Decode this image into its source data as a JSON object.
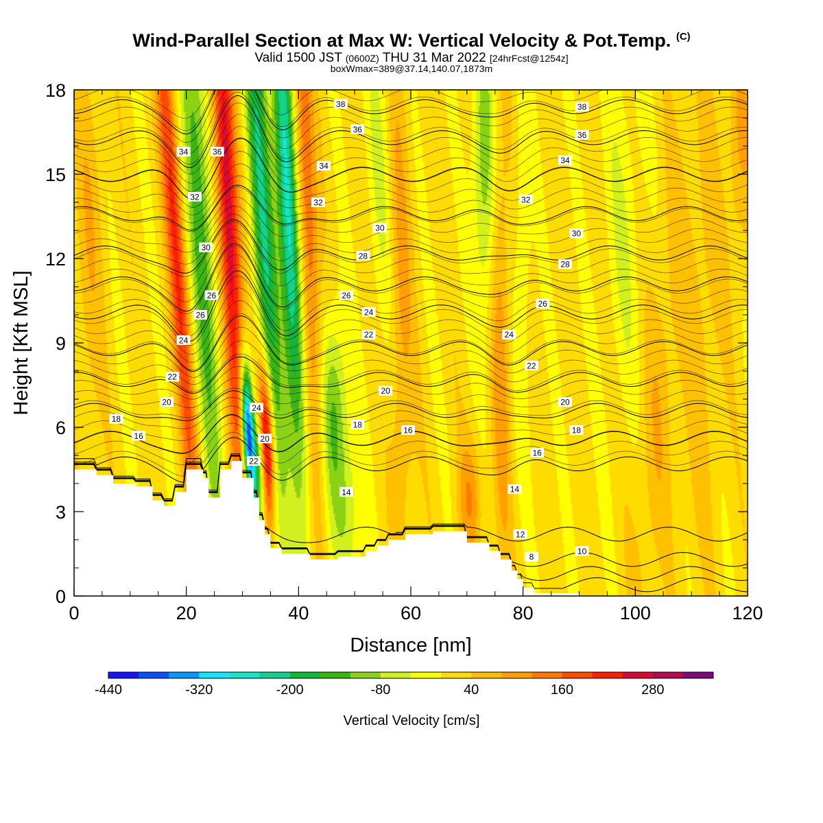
{
  "header": {
    "title": "Wind-Parallel Section at Max W: Vertical Velocity & Pot.Temp.",
    "copyright": "(C)",
    "valid_prefix": "Valid 1500 JST",
    "valid_utc": "(0600Z)",
    "valid_day": "THU 31 Mar 2022",
    "forecast": "[24hrFcst@1254z]",
    "box_info": "boxWmax=389@37.14,140.07,1873m"
  },
  "chart_data": {
    "type": "heatmap",
    "xlabel": "Distance [nm]",
    "ylabel": "Height [Kft MSL]",
    "xlim": [
      0,
      120
    ],
    "ylim": [
      0,
      18
    ],
    "x_ticks": [
      0,
      20,
      40,
      60,
      80,
      100,
      120
    ],
    "y_ticks": [
      0,
      3,
      6,
      9,
      12,
      15,
      18
    ],
    "colorbar": {
      "label": "Vertical Velocity [cm/s]",
      "min": -440,
      "step": 40,
      "tick_labels": [
        "-440",
        "-320",
        "-200",
        "-80",
        "40",
        "160",
        "280"
      ],
      "tick_values": [
        -440,
        -320,
        -200,
        -80,
        40,
        160,
        280
      ],
      "colors": [
        "#1414ff",
        "#0a50ff",
        "#0a96ff",
        "#14e6ff",
        "#14e6c8",
        "#14d28c",
        "#14b43c",
        "#3cb414",
        "#8cd214",
        "#d2f01e",
        "#ffff00",
        "#ffdc00",
        "#ffc000",
        "#ffa000",
        "#ff7800",
        "#ff4a00",
        "#ff1e00",
        "#dc0a32",
        "#b40a50",
        "#7d0a78"
      ]
    },
    "terrain": [
      [
        0,
        4.5
      ],
      [
        4,
        4.5
      ],
      [
        4,
        4.3
      ],
      [
        7,
        4.3
      ],
      [
        7,
        4.0
      ],
      [
        11,
        4.0
      ],
      [
        11,
        3.9
      ],
      [
        14,
        3.9
      ],
      [
        14,
        3.4
      ],
      [
        16,
        3.4
      ],
      [
        16,
        3.2
      ],
      [
        18,
        3.2
      ],
      [
        18,
        3.7
      ],
      [
        20,
        3.7
      ],
      [
        20,
        4.5
      ],
      [
        23,
        4.5
      ],
      [
        23,
        4.2
      ],
      [
        24,
        4.2
      ],
      [
        24,
        3.5
      ],
      [
        26,
        3.5
      ],
      [
        26,
        4.5
      ],
      [
        28,
        4.5
      ],
      [
        28,
        4.8
      ],
      [
        30,
        4.8
      ],
      [
        30,
        4.2
      ],
      [
        32,
        4.2
      ],
      [
        32,
        3.5
      ],
      [
        33,
        3.5
      ],
      [
        33,
        2.7
      ],
      [
        34,
        2.7
      ],
      [
        34,
        2.2
      ],
      [
        35,
        2.2
      ],
      [
        35,
        1.7
      ],
      [
        37,
        1.7
      ],
      [
        37,
        1.5
      ],
      [
        42,
        1.5
      ],
      [
        42,
        1.3
      ],
      [
        47,
        1.3
      ],
      [
        47,
        1.4
      ],
      [
        52,
        1.4
      ],
      [
        52,
        1.6
      ],
      [
        54,
        1.6
      ],
      [
        54,
        1.8
      ],
      [
        56,
        1.8
      ],
      [
        56,
        2.0
      ],
      [
        59,
        2.0
      ],
      [
        59,
        2.2
      ],
      [
        64,
        2.2
      ],
      [
        64,
        2.3
      ],
      [
        70,
        2.3
      ],
      [
        70,
        1.9
      ],
      [
        74,
        1.9
      ],
      [
        74,
        1.6
      ],
      [
        76,
        1.6
      ],
      [
        76,
        1.3
      ],
      [
        78,
        1.3
      ],
      [
        78,
        0.9
      ],
      [
        79,
        0.9
      ],
      [
        79,
        0.6
      ],
      [
        80,
        0.6
      ],
      [
        80,
        0.3
      ],
      [
        82,
        0.3
      ],
      [
        82,
        0.1
      ],
      [
        90,
        0.1
      ],
      [
        90,
        0
      ],
      [
        120,
        0
      ],
      [
        120,
        0
      ],
      [
        0,
        0
      ]
    ],
    "theta_isentropes": [
      {
        "label": "8",
        "base": 0.4
      },
      {
        "label": "10",
        "base": 0.8
      },
      {
        "label": "12",
        "base": 1.3
      },
      {
        "label": "14",
        "base": 2.2
      },
      {
        "label": "16",
        "base": 4.7
      },
      {
        "label": "18",
        "base": 5.6
      },
      {
        "label": "20",
        "base": 6.6
      },
      {
        "label": "22",
        "base": 7.7
      },
      {
        "label": "24",
        "base": 8.8
      },
      {
        "label": "26",
        "base": 10.1
      },
      {
        "label": "28",
        "base": 11.1
      },
      {
        "label": "30",
        "base": 12.2
      },
      {
        "label": "32",
        "base": 13.6
      },
      {
        "label": "34",
        "base": 15.0
      },
      {
        "label": "36",
        "base": 16.3
      },
      {
        "label": "38",
        "base": 17.4
      }
    ],
    "contour_labels": [
      {
        "text": "38",
        "x": 47.5,
        "y": 17.5
      },
      {
        "text": "36",
        "x": 50.5,
        "y": 16.6
      },
      {
        "text": "34",
        "x": 44.5,
        "y": 15.3
      },
      {
        "text": "32",
        "x": 43.5,
        "y": 14.0
      },
      {
        "text": "30",
        "x": 54.5,
        "y": 13.1
      },
      {
        "text": "28",
        "x": 51.5,
        "y": 12.1
      },
      {
        "text": "26",
        "x": 48.5,
        "y": 10.7
      },
      {
        "text": "24",
        "x": 52.5,
        "y": 10.1
      },
      {
        "text": "22",
        "x": 52.5,
        "y": 9.3
      },
      {
        "text": "20",
        "x": 55.5,
        "y": 7.3
      },
      {
        "text": "18",
        "x": 50.5,
        "y": 6.1
      },
      {
        "text": "16",
        "x": 59.5,
        "y": 5.9
      },
      {
        "text": "14",
        "x": 48.5,
        "y": 3.7
      },
      {
        "text": "38",
        "x": 90.5,
        "y": 17.4
      },
      {
        "text": "36",
        "x": 90.5,
        "y": 16.4
      },
      {
        "text": "34",
        "x": 87.5,
        "y": 15.5
      },
      {
        "text": "32",
        "x": 80.5,
        "y": 14.1
      },
      {
        "text": "30",
        "x": 89.5,
        "y": 12.9
      },
      {
        "text": "28",
        "x": 87.5,
        "y": 11.8
      },
      {
        "text": "26",
        "x": 83.5,
        "y": 10.4
      },
      {
        "text": "24",
        "x": 77.5,
        "y": 9.3
      },
      {
        "text": "22",
        "x": 81.5,
        "y": 8.2
      },
      {
        "text": "20",
        "x": 87.5,
        "y": 6.9
      },
      {
        "text": "18",
        "x": 89.5,
        "y": 5.9
      },
      {
        "text": "16",
        "x": 82.5,
        "y": 5.1
      },
      {
        "text": "14",
        "x": 78.5,
        "y": 3.8
      },
      {
        "text": "12",
        "x": 79.5,
        "y": 2.2
      },
      {
        "text": "10",
        "x": 90.5,
        "y": 1.6
      },
      {
        "text": "8",
        "x": 81.5,
        "y": 1.4
      },
      {
        "text": "34",
        "x": 19.5,
        "y": 15.8
      },
      {
        "text": "36",
        "x": 25.5,
        "y": 15.8
      },
      {
        "text": "32",
        "x": 21.5,
        "y": 14.2
      },
      {
        "text": "30",
        "x": 23.5,
        "y": 12.4
      },
      {
        "text": "26",
        "x": 24.5,
        "y": 10.7
      },
      {
        "text": "26",
        "x": 22.5,
        "y": 10.0
      },
      {
        "text": "24",
        "x": 19.5,
        "y": 9.1
      },
      {
        "text": "22",
        "x": 17.5,
        "y": 7.8
      },
      {
        "text": "20",
        "x": 16.5,
        "y": 6.9
      },
      {
        "text": "18",
        "x": 7.5,
        "y": 6.3
      },
      {
        "text": "16",
        "x": 11.5,
        "y": 5.7
      },
      {
        "text": "24",
        "x": 32.5,
        "y": 6.7
      },
      {
        "text": "20",
        "x": 34.0,
        "y": 5.6
      },
      {
        "text": "22",
        "x": 32.0,
        "y": 4.8
      }
    ],
    "w_features": [
      {
        "x": 2.5,
        "y": 12.5,
        "sx": 2.0,
        "sy": 5.0,
        "w": 50,
        "tilt": 0
      },
      {
        "x": 18,
        "y": 13.0,
        "sx": 1.2,
        "sy": 9.0,
        "w": 185,
        "tilt": -0.35
      },
      {
        "x": 22.5,
        "y": 13.5,
        "sx": 1.6,
        "sy": 8.5,
        "w": -170,
        "tilt": -0.3
      },
      {
        "x": 27.5,
        "y": 13.5,
        "sx": 1.3,
        "sy": 8.5,
        "w": 270,
        "tilt": -0.25
      },
      {
        "x": 33.5,
        "y": 13.5,
        "sx": 1.5,
        "sy": 8.5,
        "w": -210,
        "tilt": -0.28
      },
      {
        "x": 38.0,
        "y": 14.0,
        "sx": 1.3,
        "sy": 7.0,
        "w": -290,
        "tilt": -0.25
      },
      {
        "x": 41.5,
        "y": 14.0,
        "sx": 1.2,
        "sy": 7.0,
        "w": 150,
        "tilt": -0.2
      },
      {
        "x": 31.0,
        "y": 5.8,
        "sx": 0.8,
        "sy": 1.8,
        "w": -440,
        "tilt": -0.25
      },
      {
        "x": 34.3,
        "y": 5.5,
        "sx": 0.9,
        "sy": 2.0,
        "w": 330,
        "tilt": -0.2
      },
      {
        "x": 33.0,
        "y": 4.5,
        "sx": 0.9,
        "sy": 1.4,
        "w": -160,
        "tilt": 0
      },
      {
        "x": 46.5,
        "y": 6.3,
        "sx": 1.6,
        "sy": 2.6,
        "w": -150,
        "tilt": -0.1
      },
      {
        "x": 55.0,
        "y": 15.0,
        "sx": 2.0,
        "sy": 5.0,
        "w": -60,
        "tilt": -0.15
      },
      {
        "x": 49.0,
        "y": 2.5,
        "sx": 1.5,
        "sy": 2.0,
        "w": -80,
        "tilt": 0
      },
      {
        "x": 58.0,
        "y": 11.0,
        "sx": 1.5,
        "sy": 7.0,
        "w": 90,
        "tilt": -0.1
      },
      {
        "x": 73.0,
        "y": 15.5,
        "sx": 1.4,
        "sy": 4.0,
        "w": -130,
        "tilt": -0.05
      },
      {
        "x": 76.0,
        "y": 9.0,
        "sx": 1.2,
        "sy": 6.0,
        "w": 90,
        "tilt": -0.05
      },
      {
        "x": 80.0,
        "y": 13.0,
        "sx": 1.0,
        "sy": 5.0,
        "w": -60,
        "tilt": 0
      },
      {
        "x": 70.5,
        "y": 3.5,
        "sx": 1.5,
        "sy": 1.5,
        "w": 90,
        "tilt": 0
      },
      {
        "x": 98.0,
        "y": 13.0,
        "sx": 2.5,
        "sy": 5.0,
        "w": -50,
        "tilt": 0
      },
      {
        "x": 104.0,
        "y": 6.5,
        "sx": 2.5,
        "sy": 6.0,
        "w": 50,
        "tilt": 0.35
      },
      {
        "x": 112.0,
        "y": 10.0,
        "sx": 2.5,
        "sy": 6.0,
        "w": 45,
        "tilt": 0
      },
      {
        "x": 118.5,
        "y": 16.0,
        "sx": 1.5,
        "sy": 3.0,
        "w": 70,
        "tilt": 0
      }
    ]
  }
}
